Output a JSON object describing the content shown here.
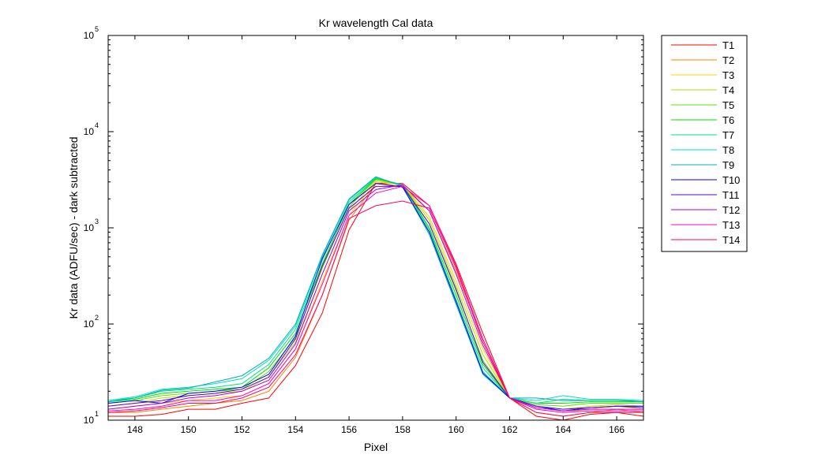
{
  "chart_data": {
    "type": "line",
    "title": "Kr wavelength Cal data",
    "xlabel": "Pixel",
    "ylabel": "Kr data (ADFU/sec) - dark subtracted",
    "xlim": [
      147,
      167
    ],
    "ylim": [
      10,
      100000
    ],
    "yscale": "log",
    "grid": false,
    "legend_position": "outside-right",
    "x_ticks": [
      "148",
      "150",
      "152",
      "154",
      "156",
      "158",
      "160",
      "162",
      "164",
      "166"
    ],
    "y_ticks": [
      {
        "base": "10",
        "exp": "1"
      },
      {
        "base": "10",
        "exp": "2"
      },
      {
        "base": "10",
        "exp": "3"
      },
      {
        "base": "10",
        "exp": "4"
      },
      {
        "base": "10",
        "exp": "5"
      }
    ],
    "x": [
      147,
      148,
      149,
      150,
      151,
      152,
      153,
      154,
      155,
      156,
      157,
      158,
      159,
      160,
      161,
      162,
      163,
      164,
      165,
      166,
      167
    ],
    "series": [
      {
        "name": "T1",
        "color": "#ff0000",
        "values": [
          11,
          11,
          11.5,
          13,
          13,
          15,
          17,
          37,
          130,
          950,
          2900,
          2900,
          1700,
          420,
          80,
          17,
          11,
          10,
          11.5,
          12,
          11
        ]
      },
      {
        "name": "T2",
        "color": "#ff8000",
        "values": [
          12,
          12,
          13,
          14,
          15,
          16,
          20,
          45,
          200,
          1200,
          2900,
          2700,
          1500,
          350,
          70,
          17,
          12,
          11,
          12,
          13,
          12
        ]
      },
      {
        "name": "T3",
        "color": "#ffd000",
        "values": [
          13,
          14,
          15,
          16,
          17,
          18,
          24,
          55,
          280,
          1350,
          3000,
          2800,
          1300,
          280,
          55,
          17,
          13,
          12,
          13,
          14,
          13
        ]
      },
      {
        "name": "T4",
        "color": "#b0e000",
        "values": [
          14,
          15,
          17,
          18,
          19,
          20,
          28,
          65,
          330,
          1500,
          3100,
          2800,
          1200,
          250,
          48,
          17,
          14,
          13,
          14,
          14.5,
          14
        ]
      },
      {
        "name": "T5",
        "color": "#60e000",
        "values": [
          15,
          16,
          18,
          19,
          20,
          21,
          32,
          72,
          380,
          1650,
          3200,
          2800,
          1100,
          220,
          42,
          17,
          14.5,
          14,
          15,
          15,
          15
        ]
      },
      {
        "name": "T6",
        "color": "#00e000",
        "values": [
          15.5,
          16.5,
          19,
          20,
          21,
          22,
          35,
          80,
          420,
          1750,
          3250,
          2800,
          1000,
          200,
          38,
          17,
          15,
          15,
          15.5,
          15.5,
          15.5
        ]
      },
      {
        "name": "T7",
        "color": "#00e080",
        "values": [
          16,
          17,
          20,
          21,
          22,
          24,
          38,
          88,
          460,
          1850,
          3300,
          2800,
          950,
          180,
          35,
          17,
          15,
          16.5,
          16,
          16,
          16
        ]
      },
      {
        "name": "T8",
        "color": "#00e0c0",
        "values": [
          16,
          17.5,
          21,
          22,
          24,
          27,
          42,
          95,
          500,
          1950,
          3350,
          2750,
          900,
          170,
          32,
          17,
          16,
          18,
          16.5,
          16.5,
          16
        ]
      },
      {
        "name": "T9",
        "color": "#00b0b0",
        "values": [
          15.5,
          17,
          20.5,
          21.5,
          25,
          29,
          44,
          100,
          520,
          2000,
          3400,
          2700,
          850,
          160,
          30,
          17,
          17,
          16,
          16,
          16,
          15.5
        ]
      },
      {
        "name": "T10",
        "color": "#0000ff",
        "values": [
          15,
          16,
          15,
          19,
          20,
          22,
          30,
          75,
          480,
          1750,
          2900,
          2650,
          900,
          170,
          31,
          17,
          14,
          12.5,
          13.5,
          14,
          14
        ]
      },
      {
        "name": "T11",
        "color": "#6000e0",
        "values": [
          14,
          15,
          16,
          18,
          19,
          21,
          28,
          70,
          400,
          1600,
          2700,
          2700,
          1100,
          230,
          40,
          17,
          14,
          13,
          13.5,
          14,
          13.5
        ]
      },
      {
        "name": "T12",
        "color": "#b000e0",
        "values": [
          13,
          14,
          15,
          17,
          18,
          20,
          26,
          62,
          330,
          1500,
          2500,
          2800,
          1500,
          330,
          60,
          17,
          13.5,
          12.5,
          13,
          13,
          13
        ]
      },
      {
        "name": "T13",
        "color": "#ff00c0",
        "values": [
          12.5,
          13,
          14,
          16,
          16,
          18,
          24,
          55,
          260,
          1350,
          2300,
          2700,
          1700,
          400,
          70,
          17,
          13,
          12,
          12.5,
          12.5,
          12.5
        ]
      },
      {
        "name": "T14",
        "color": "#ff0060",
        "values": [
          12,
          12.5,
          13.5,
          15,
          15,
          17,
          22,
          48,
          200,
          1250,
          1700,
          1900,
          1600,
          380,
          65,
          17,
          12,
          11,
          12,
          12,
          12
        ]
      }
    ]
  }
}
